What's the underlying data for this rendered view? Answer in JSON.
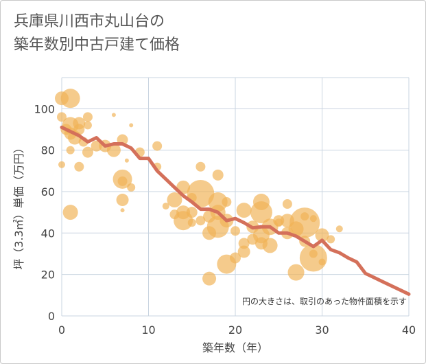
{
  "title_lines": [
    "兵庫県川西市丸山台の",
    "築年数別中古戸建て価格"
  ],
  "chart_data": {
    "type": "scatter",
    "xlabel": "築年数（年）",
    "ylabel": "坪（3.3㎡）単価（万円）",
    "xlim": [
      0,
      40
    ],
    "ylim": [
      0,
      115
    ],
    "xticks": [
      0,
      10,
      20,
      30,
      40
    ],
    "yticks": [
      0,
      20,
      40,
      60,
      80,
      100
    ],
    "grid": true,
    "note": "円の大きさは、取引のあった物件面積を示す",
    "colors": {
      "bubble": "#f0b255",
      "line": "#d4705a",
      "grid": "#c9d4e0",
      "plot_bg": "#ffffff"
    },
    "line": {
      "name": "",
      "x": [
        0,
        1,
        2,
        3,
        4,
        5,
        6,
        7,
        8,
        9,
        10,
        11,
        12,
        13,
        14,
        15,
        16,
        17,
        18,
        19,
        20,
        21,
        22,
        23,
        24,
        25,
        26,
        27,
        28,
        29,
        30,
        31,
        32,
        33,
        34,
        35,
        36,
        37,
        38,
        39,
        40
      ],
      "y": [
        91,
        89,
        87,
        84,
        86,
        82,
        83,
        83,
        81,
        76,
        76,
        70,
        66,
        62,
        58,
        55,
        51.5,
        51.5,
        50,
        46,
        47,
        45,
        42.5,
        43,
        43,
        40,
        40,
        38.5,
        36,
        33.5,
        36.5,
        32,
        30.5,
        28,
        26,
        20.5,
        18.5,
        16.5,
        14.5,
        12.5,
        10.5
      ]
    },
    "bubbles": [
      {
        "x": 0,
        "y": 105,
        "s": 10
      },
      {
        "x": 1,
        "y": 105,
        "s": 14
      },
      {
        "x": 0,
        "y": 96,
        "s": 7
      },
      {
        "x": 0.5,
        "y": 90,
        "s": 8
      },
      {
        "x": 1,
        "y": 92,
        "s": 12
      },
      {
        "x": 1,
        "y": 88,
        "s": 9
      },
      {
        "x": 1.5,
        "y": 86,
        "s": 10
      },
      {
        "x": 2,
        "y": 93,
        "s": 9
      },
      {
        "x": 2,
        "y": 90,
        "s": 8
      },
      {
        "x": 3,
        "y": 96,
        "s": 7
      },
      {
        "x": 3,
        "y": 92,
        "s": 6
      },
      {
        "x": 2.5,
        "y": 84,
        "s": 7
      },
      {
        "x": 3,
        "y": 79,
        "s": 8
      },
      {
        "x": 1,
        "y": 80,
        "s": 6
      },
      {
        "x": 2,
        "y": 72,
        "s": 7
      },
      {
        "x": 0,
        "y": 73,
        "s": 5
      },
      {
        "x": 1,
        "y": 50,
        "s": 11
      },
      {
        "x": 4,
        "y": 82,
        "s": 8
      },
      {
        "x": 5,
        "y": 82,
        "s": 9
      },
      {
        "x": 6,
        "y": 80,
        "s": 10
      },
      {
        "x": 7,
        "y": 85,
        "s": 8
      },
      {
        "x": 8,
        "y": 92,
        "s": 3
      },
      {
        "x": 6,
        "y": 97,
        "s": 3
      },
      {
        "x": 7.5,
        "y": 75,
        "s": 3
      },
      {
        "x": 9,
        "y": 79,
        "s": 7
      },
      {
        "x": 7,
        "y": 66,
        "s": 14
      },
      {
        "x": 7,
        "y": 65,
        "s": 7
      },
      {
        "x": 8,
        "y": 62,
        "s": 6
      },
      {
        "x": 7,
        "y": 56,
        "s": 9
      },
      {
        "x": 7,
        "y": 51,
        "s": 3
      },
      {
        "x": 11,
        "y": 82,
        "s": 7
      },
      {
        "x": 11,
        "y": 72,
        "s": 6
      },
      {
        "x": 13,
        "y": 56,
        "s": 11
      },
      {
        "x": 14,
        "y": 62,
        "s": 10
      },
      {
        "x": 14,
        "y": 50,
        "s": 10
      },
      {
        "x": 14,
        "y": 46,
        "s": 14
      },
      {
        "x": 13,
        "y": 49,
        "s": 7
      },
      {
        "x": 15,
        "y": 57,
        "s": 7
      },
      {
        "x": 15,
        "y": 50,
        "s": 8
      },
      {
        "x": 16,
        "y": 59,
        "s": 20
      },
      {
        "x": 16,
        "y": 46,
        "s": 7
      },
      {
        "x": 16,
        "y": 72,
        "s": 7
      },
      {
        "x": 17,
        "y": 48,
        "s": 9
      },
      {
        "x": 17,
        "y": 40,
        "s": 10
      },
      {
        "x": 17,
        "y": 18,
        "s": 10
      },
      {
        "x": 18,
        "y": 68,
        "s": 8
      },
      {
        "x": 18,
        "y": 55,
        "s": 14
      },
      {
        "x": 18,
        "y": 50,
        "s": 11
      },
      {
        "x": 18,
        "y": 43,
        "s": 16
      },
      {
        "x": 19,
        "y": 55,
        "s": 7
      },
      {
        "x": 19,
        "y": 46,
        "s": 10
      },
      {
        "x": 19,
        "y": 25,
        "s": 14
      },
      {
        "x": 20,
        "y": 41,
        "s": 7
      },
      {
        "x": 20,
        "y": 28,
        "s": 8
      },
      {
        "x": 21,
        "y": 51,
        "s": 11
      },
      {
        "x": 21,
        "y": 35,
        "s": 8
      },
      {
        "x": 21,
        "y": 31,
        "s": 9
      },
      {
        "x": 22,
        "y": 43,
        "s": 9
      },
      {
        "x": 22,
        "y": 37,
        "s": 8
      },
      {
        "x": 23,
        "y": 55,
        "s": 12
      },
      {
        "x": 23,
        "y": 50,
        "s": 16
      },
      {
        "x": 23,
        "y": 39,
        "s": 12
      },
      {
        "x": 23,
        "y": 35,
        "s": 9
      },
      {
        "x": 24,
        "y": 43,
        "s": 12
      },
      {
        "x": 24,
        "y": 34,
        "s": 11
      },
      {
        "x": 25,
        "y": 46,
        "s": 8
      },
      {
        "x": 26,
        "y": 54,
        "s": 7
      },
      {
        "x": 26,
        "y": 46,
        "s": 10
      },
      {
        "x": 26,
        "y": 40,
        "s": 9
      },
      {
        "x": 27,
        "y": 42,
        "s": 11
      },
      {
        "x": 27,
        "y": 21,
        "s": 12
      },
      {
        "x": 28,
        "y": 45,
        "s": 22
      },
      {
        "x": 28,
        "y": 48,
        "s": 6
      },
      {
        "x": 28,
        "y": 36,
        "s": 8
      },
      {
        "x": 29,
        "y": 47,
        "s": 5
      },
      {
        "x": 29,
        "y": 28,
        "s": 20
      },
      {
        "x": 29,
        "y": 30,
        "s": 6
      },
      {
        "x": 30,
        "y": 39,
        "s": 10
      },
      {
        "x": 30,
        "y": 26,
        "s": 5
      },
      {
        "x": 32,
        "y": 42,
        "s": 5
      },
      {
        "x": 31,
        "y": 37,
        "s": 6
      },
      {
        "x": 25,
        "y": 45,
        "s": 6
      },
      {
        "x": 12,
        "y": 53,
        "s": 5
      },
      {
        "x": 15,
        "y": 45,
        "s": 6
      }
    ]
  }
}
